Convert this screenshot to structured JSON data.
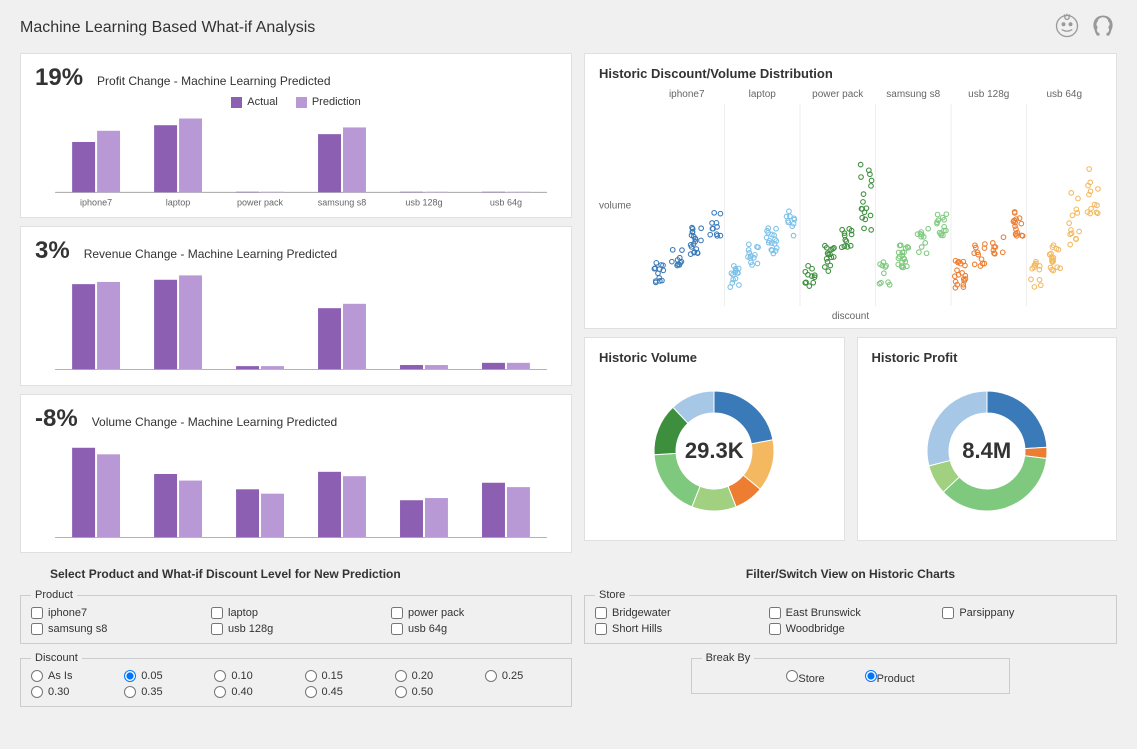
{
  "page_title": "Machine Learning Based What-if Analysis",
  "colors": {
    "actual": "#8c5fb3",
    "prediction": "#b899d6",
    "panel_border": "#e0e0e0",
    "series": [
      "#3a7ab8",
      "#7cc0e8",
      "#3d8f3d",
      "#7fc97f",
      "#ed7d31",
      "#f4b860"
    ],
    "donut": [
      "#3a7ab8",
      "#7fc97f",
      "#a0d080",
      "#f4b860",
      "#ed7d31",
      "#3d8f3d",
      "#a7c7e7"
    ]
  },
  "profit_chart": {
    "pct": "19%",
    "title": "Profit Change - Machine Learning Predicted",
    "legend": [
      "Actual",
      "Prediction"
    ],
    "categories": [
      "iphone7",
      "laptop",
      "power pack",
      "samsung s8",
      "usb 128g",
      "usb 64g"
    ],
    "actual": [
      45,
      60,
      0.5,
      52,
      0.5,
      0.5
    ],
    "prediction": [
      55,
      66,
      0.5,
      58,
      0.5,
      0.5
    ],
    "ymax": 70
  },
  "revenue_chart": {
    "pct": "3%",
    "title": "Revenue Change - Machine Learning Predicted",
    "categories": [
      "iphone7",
      "laptop",
      "power pack",
      "samsung s8",
      "usb 128g",
      "usb 64g"
    ],
    "actual": [
      78,
      82,
      3,
      56,
      4,
      6
    ],
    "prediction": [
      80,
      86,
      3,
      60,
      4,
      6
    ],
    "ymax": 90
  },
  "volume_chart": {
    "pct": "-8%",
    "title": "Volume Change - Machine Learning Predicted",
    "categories": [
      "iphone7",
      "laptop",
      "power pack",
      "samsung s8",
      "usb 128g",
      "usb 64g"
    ],
    "actual": [
      82,
      58,
      44,
      60,
      34,
      50
    ],
    "prediction": [
      76,
      52,
      40,
      56,
      36,
      46
    ],
    "ymax": 90
  },
  "scatter": {
    "title": "Historic Discount/Volume Distribution",
    "xlabel": "discount",
    "ylabel": "volume",
    "categories": [
      "iphone7",
      "laptop",
      "power pack",
      "samsung s8",
      "usb 128g",
      "usb 64g"
    ],
    "colors": [
      "#3a7ab8",
      "#7cc0e8",
      "#3d8f3d",
      "#7fc97f",
      "#ed7d31",
      "#f4b860"
    ],
    "x_subslots": 4,
    "y_max": 100,
    "point_count_per_series": 55
  },
  "donut_volume": {
    "title": "Historic Volume",
    "center": "29.3K",
    "slices": [
      {
        "value": 22,
        "color": "#3a7ab8"
      },
      {
        "value": 14,
        "color": "#f4b860"
      },
      {
        "value": 8,
        "color": "#ed7d31"
      },
      {
        "value": 12,
        "color": "#a0d080"
      },
      {
        "value": 18,
        "color": "#7fc97f"
      },
      {
        "value": 14,
        "color": "#3d8f3d"
      },
      {
        "value": 12,
        "color": "#a7c7e7"
      }
    ]
  },
  "donut_profit": {
    "title": "Historic Profit",
    "center": "8.4M",
    "slices": [
      {
        "value": 24,
        "color": "#3a7ab8"
      },
      {
        "value": 3,
        "color": "#ed7d31"
      },
      {
        "value": 36,
        "color": "#7fc97f"
      },
      {
        "value": 8,
        "color": "#a0d080"
      },
      {
        "value": 29,
        "color": "#a7c7e7"
      }
    ]
  },
  "controls_left": {
    "heading": "Select Product and What-if Discount Level for New Prediction",
    "product_label": "Product",
    "products": [
      "iphone7",
      "laptop",
      "power pack",
      "samsung s8",
      "usb 128g",
      "usb 64g"
    ],
    "discount_label": "Discount",
    "discounts": [
      "As Is",
      "0.05",
      "0.10",
      "0.15",
      "0.20",
      "0.25",
      "0.30",
      "0.35",
      "0.40",
      "0.45",
      "0.50"
    ],
    "selected_discount": "0.05"
  },
  "controls_right": {
    "heading": "Filter/Switch View on Historic Charts",
    "store_label": "Store",
    "stores": [
      "Bridgewater",
      "East Brunswick",
      "Parsippany",
      "Short Hills",
      "Woodbridge"
    ],
    "breakby_label": "Break By",
    "breakby_options": [
      "Store",
      "Product"
    ],
    "selected_breakby": "Product"
  }
}
